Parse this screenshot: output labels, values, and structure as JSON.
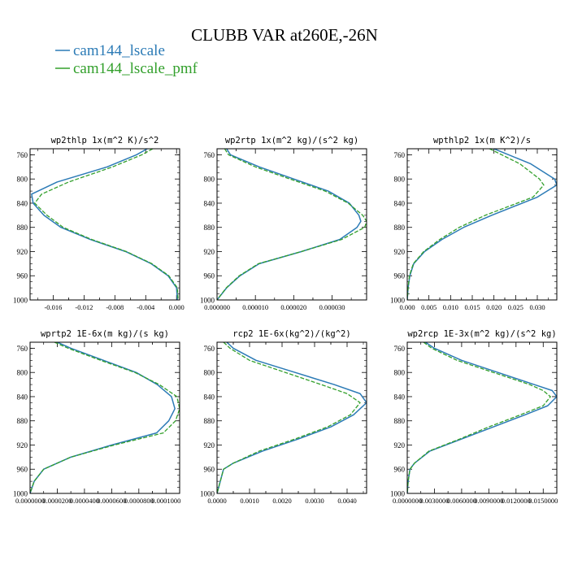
{
  "figure": {
    "title": "CLUBB VAR at260E,-26N"
  },
  "chart_data": [
    {
      "type": "line",
      "title": "wp2thlp  1x(m^2 K)/s^2",
      "ylim": [
        1000,
        750
      ],
      "yticks": [
        760,
        800,
        840,
        880,
        920,
        960,
        1000
      ],
      "xlim": [
        -0.019,
        0.0004
      ],
      "xticks": [
        -0.016,
        -0.012,
        -0.008,
        -0.004,
        0.0
      ],
      "xtick_labels": [
        "-0.016",
        "-0.012",
        "-0.008",
        "-0.004",
        "0.000"
      ],
      "y": [
        750,
        760,
        780,
        805,
        825,
        840,
        860,
        880,
        900,
        920,
        940,
        960,
        980,
        1000
      ],
      "series": [
        {
          "name": "cam144_lscale",
          "values": [
            -0.0038,
            -0.0052,
            -0.009,
            -0.0155,
            -0.0188,
            -0.0186,
            -0.0172,
            -0.015,
            -0.0112,
            -0.0066,
            -0.0033,
            -0.0011,
            0.0,
            0.0001
          ]
        },
        {
          "name": "cam144_lscale_pmf",
          "values": [
            -0.0031,
            -0.0045,
            -0.0083,
            -0.014,
            -0.0175,
            -0.0184,
            -0.0168,
            -0.0147,
            -0.011,
            -0.0065,
            -0.0032,
            -0.001,
            0.0001,
            0.0002
          ]
        }
      ]
    },
    {
      "type": "line",
      "title": "wp2rtp  1x(m^2 kg)/(s^2 kg)",
      "ylim": [
        1000,
        750
      ],
      "yticks": [
        760,
        800,
        840,
        880,
        920,
        960,
        1000
      ],
      "xlim": [
        0.0,
        3.9e-05
      ],
      "xticks": [
        0.0,
        1e-05,
        2e-05,
        3e-05
      ],
      "xtick_labels": [
        "0.000000",
        "0.000010",
        "0.000020",
        "0.000030"
      ],
      "y": [
        750,
        760,
        780,
        800,
        820,
        840,
        860,
        870,
        880,
        900,
        920,
        940,
        960,
        980,
        1000
      ],
      "series": [
        {
          "name": "cam144_lscale",
          "values": [
            2.5e-06,
            3.5e-06,
            1.1e-05,
            2e-05,
            2.9e-05,
            3.45e-05,
            3.7e-05,
            3.75e-05,
            3.65e-05,
            3.2e-05,
            2.2e-05,
            1.1e-05,
            6e-06,
            2.5e-06,
            0.0
          ]
        },
        {
          "name": "cam144_lscale_pmf",
          "values": [
            2e-06,
            3e-06,
            1e-05,
            1.9e-05,
            2.82e-05,
            3.42e-05,
            3.8e-05,
            3.9e-05,
            3.85e-05,
            3.25e-05,
            2.2e-05,
            1.08e-05,
            5.8e-06,
            2.4e-06,
            0.0
          ]
        }
      ]
    },
    {
      "type": "line",
      "title": "wpthlp2  1x(m K^2)/s",
      "ylim": [
        1000,
        750
      ],
      "yticks": [
        760,
        800,
        840,
        880,
        920,
        960,
        1000
      ],
      "xlim": [
        0.0,
        0.0345
      ],
      "xticks": [
        0.0,
        0.005,
        0.01,
        0.015,
        0.02,
        0.025,
        0.03
      ],
      "xtick_labels": [
        "0.000",
        "0.005",
        "0.010",
        "0.015",
        "0.020",
        "0.025",
        "0.030"
      ],
      "y": [
        750,
        775,
        800,
        810,
        830,
        860,
        880,
        900,
        920,
        940,
        960,
        980,
        1000
      ],
      "series": [
        {
          "name": "cam144_lscale",
          "values": [
            0.02,
            0.0285,
            0.034,
            0.0345,
            0.03,
            0.0195,
            0.013,
            0.008,
            0.004,
            0.0015,
            0.0006,
            0.0002,
            0.0
          ]
        },
        {
          "name": "cam144_lscale_pmf",
          "values": [
            0.019,
            0.026,
            0.0305,
            0.0315,
            0.029,
            0.018,
            0.012,
            0.0075,
            0.0038,
            0.0014,
            0.0005,
            0.0002,
            0.0
          ]
        }
      ]
    },
    {
      "type": "line",
      "title": "wprtp2  1E-6x(m kg)/(s kg)",
      "ylim": [
        1000,
        750
      ],
      "yticks": [
        760,
        800,
        840,
        880,
        920,
        960,
        1000
      ],
      "xlim": [
        0.0,
        0.00011
      ],
      "xticks": [
        0.0,
        2e-05,
        4e-05,
        6e-05,
        8e-05,
        0.0001
      ],
      "xtick_labels": [
        "0.0000000",
        "0.0000200",
        "0.0000400",
        "0.0000600",
        "0.0000800",
        "0.0001000"
      ],
      "y": [
        750,
        760,
        780,
        800,
        820,
        840,
        860,
        880,
        900,
        920,
        940,
        960,
        980,
        1000
      ],
      "series": [
        {
          "name": "cam144_lscale",
          "values": [
            2e-05,
            3e-05,
            5.4e-05,
            7.8e-05,
            9.35e-05,
            0.000104,
            0.0001065,
            0.000102,
            9.3e-05,
            6e-05,
            3e-05,
            1e-05,
            3e-06,
            0.0
          ]
        },
        {
          "name": "cam144_lscale_pmf",
          "values": [
            1.8e-05,
            2.8e-05,
            5.2e-05,
            7.7e-05,
            9.5e-05,
            0.000108,
            0.00011,
            0.000107,
            9.8e-05,
            6.2e-05,
            3e-05,
            1e-05,
            3e-06,
            0.0
          ]
        }
      ]
    },
    {
      "type": "line",
      "title": "rcp2  1E-6x(kg^2)/(kg^2)",
      "ylim": [
        1000,
        750
      ],
      "yticks": [
        760,
        800,
        840,
        880,
        920,
        960,
        1000
      ],
      "xlim": [
        0.0,
        0.0046
      ],
      "xticks": [
        0.0,
        0.001,
        0.002,
        0.003,
        0.004
      ],
      "xtick_labels": [
        "0.0000",
        "0.0010",
        "0.0020",
        "0.0030",
        "0.0040"
      ],
      "y": [
        750,
        760,
        780,
        800,
        820,
        835,
        850,
        870,
        890,
        910,
        930,
        950,
        960,
        980,
        1000
      ],
      "series": [
        {
          "name": "cam144_lscale",
          "values": [
            0.0003,
            0.0005,
            0.0012,
            0.0024,
            0.0036,
            0.0044,
            0.0046,
            0.0042,
            0.0035,
            0.0025,
            0.0014,
            0.0005,
            0.0002,
            0.0001,
            0.0
          ]
        },
        {
          "name": "cam144_lscale_pmf",
          "values": [
            0.0002,
            0.0004,
            0.001,
            0.0021,
            0.0032,
            0.004,
            0.0044,
            0.0041,
            0.0034,
            0.0024,
            0.0013,
            0.0005,
            0.0002,
            0.0001,
            0.0
          ]
        }
      ]
    },
    {
      "type": "line",
      "title": "wp2rcp  1E-3x(m^2 kg)/(s^2 kg)",
      "ylim": [
        1000,
        750
      ],
      "yticks": [
        760,
        800,
        840,
        880,
        920,
        960,
        1000
      ],
      "xlim": [
        0.0,
        0.0165
      ],
      "xticks": [
        0.0,
        0.003,
        0.006,
        0.009,
        0.012,
        0.015
      ],
      "xtick_labels": [
        "0.0000000",
        "0.0030000",
        "0.0060000",
        "0.0090000",
        "0.0120000",
        "0.0150000"
      ],
      "y": [
        750,
        760,
        780,
        800,
        820,
        830,
        840,
        855,
        870,
        890,
        910,
        930,
        950,
        960,
        980,
        1000
      ],
      "series": [
        {
          "name": "cam144_lscale",
          "values": [
            0.002,
            0.003,
            0.006,
            0.01,
            0.014,
            0.016,
            0.0165,
            0.0155,
            0.013,
            0.0095,
            0.006,
            0.0025,
            0.0008,
            0.0003,
            0.0001,
            0.0
          ]
        },
        {
          "name": "cam144_lscale_pmf",
          "values": [
            0.0018,
            0.0027,
            0.0055,
            0.0095,
            0.0135,
            0.015,
            0.0158,
            0.015,
            0.0125,
            0.009,
            0.0058,
            0.0024,
            0.0008,
            0.0003,
            0.0001,
            0.0
          ]
        }
      ]
    }
  ],
  "legend": {
    "items": [
      {
        "label": "cam144_lscale",
        "color": "#2c7bb6"
      },
      {
        "label": "cam144_lscale_pmf",
        "color": "#33a02c"
      }
    ]
  },
  "colors": {
    "series_1": "#2c7bb6",
    "series_2": "#33a02c"
  }
}
